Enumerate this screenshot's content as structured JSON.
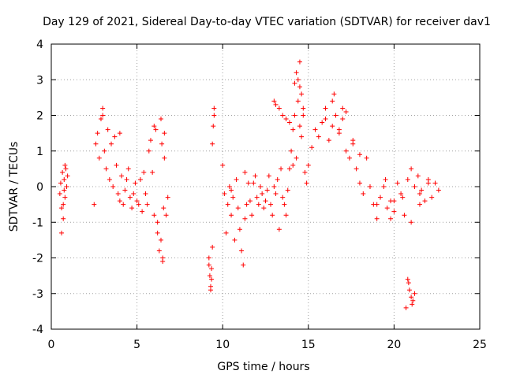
{
  "chart_data": {
    "type": "scatter",
    "title": "Day 129 of 2021, Sidereal Day-to-day VTEC variation (SDTVAR) for receiver dav1",
    "xlabel": "GPS time / hours",
    "ylabel": "SDTVAR / TECUs",
    "xlim": [
      0,
      25
    ],
    "ylim": [
      -4,
      4
    ],
    "xticks": [
      0,
      5,
      10,
      15,
      20,
      25
    ],
    "yticks": [
      -4,
      -3,
      -2,
      -1,
      0,
      1,
      2,
      3,
      4
    ],
    "grid": true,
    "marker": "+",
    "color": "#ff0000",
    "series": [
      {
        "name": "SDTVAR",
        "x": [
          0.5,
          0.55,
          0.6,
          0.65,
          0.7,
          0.75,
          0.8,
          0.85,
          0.9,
          0.95,
          0.6,
          0.7,
          0.8,
          0.75,
          2.5,
          2.6,
          2.7,
          2.8,
          2.9,
          3.0,
          3.1,
          3.2,
          3.3,
          3.4,
          3.5,
          3.6,
          3.7,
          3.8,
          3.9,
          4.0,
          4.1,
          4.2,
          4.3,
          4.4,
          4.5,
          4.6,
          4.7,
          4.8,
          4.9,
          5.0,
          5.1,
          5.2,
          5.3,
          5.4,
          5.5,
          5.6,
          5.7,
          5.8,
          5.9,
          6.0,
          6.1,
          6.2,
          6.3,
          6.4,
          6.5,
          6.6,
          6.7,
          6.8,
          6.2,
          6.4,
          6.5,
          6.6,
          6.45,
          6.55,
          9.2,
          9.25,
          9.3,
          9.35,
          9.4,
          9.45,
          9.5,
          9.2,
          9.3,
          9.4,
          9.5,
          9.35,
          10.0,
          10.1,
          10.2,
          10.3,
          10.4,
          10.5,
          10.6,
          10.7,
          10.8,
          10.9,
          11.0,
          11.1,
          11.2,
          11.3,
          11.4,
          11.5,
          11.6,
          11.7,
          11.8,
          11.9,
          12.0,
          12.1,
          12.2,
          12.3,
          12.4,
          12.5,
          12.6,
          12.7,
          12.8,
          12.9,
          13.0,
          13.1,
          13.2,
          13.3,
          13.4,
          13.5,
          13.6,
          13.7,
          13.8,
          13.9,
          14.0,
          14.1,
          14.2,
          14.3,
          14.4,
          14.5,
          14.6,
          14.7,
          14.8,
          14.9,
          13.0,
          13.1,
          13.3,
          13.5,
          13.7,
          13.9,
          14.1,
          14.2,
          14.3,
          14.4,
          14.5,
          14.6,
          14.7,
          15.0,
          15.2,
          15.4,
          15.6,
          15.8,
          16.0,
          16.2,
          16.4,
          16.6,
          16.8,
          17.0,
          17.2,
          17.4,
          17.6,
          17.8,
          18.0,
          18.2,
          18.4,
          18.6,
          18.8,
          19.0,
          19.2,
          19.4,
          19.6,
          19.8,
          20.0,
          20.2,
          20.4,
          20.6,
          20.8,
          21.0,
          21.2,
          21.4,
          21.6,
          21.8,
          22.0,
          22.2,
          22.4,
          22.6,
          16.0,
          16.4,
          16.8,
          17.2,
          17.6,
          18.0,
          19.0,
          19.5,
          20.0,
          20.5,
          21.0,
          21.5,
          22.0,
          20.7,
          20.8,
          20.9,
          21.0,
          21.1,
          21.2,
          20.85,
          21.05,
          3.0,
          4.0,
          6.0,
          10.5,
          11.3,
          14.5,
          16.5,
          17.0,
          19.8,
          21.5
        ],
        "y": [
          -0.2,
          0.1,
          -0.6,
          0.4,
          -0.9,
          0.2,
          -0.3,
          0.5,
          0.0,
          0.3,
          -1.3,
          -0.5,
          0.6,
          -0.1,
          -0.5,
          1.2,
          1.5,
          0.8,
          1.9,
          2.2,
          1.0,
          0.5,
          1.6,
          0.2,
          1.2,
          0.0,
          1.4,
          0.6,
          -0.2,
          -0.4,
          0.3,
          -0.5,
          -0.1,
          0.2,
          0.5,
          -0.3,
          -0.6,
          -0.2,
          0.1,
          -0.4,
          -0.5,
          0.2,
          -0.7,
          0.4,
          -0.2,
          -0.5,
          1.0,
          1.3,
          0.4,
          -0.8,
          1.6,
          -1.3,
          -1.8,
          1.9,
          -2.1,
          1.5,
          -0.8,
          -0.3,
          -1.0,
          -1.5,
          -2.0,
          0.8,
          1.2,
          -0.6,
          -2.0,
          -2.5,
          -2.8,
          -2.3,
          -1.7,
          1.7,
          2.2,
          -2.2,
          -2.9,
          1.2,
          2.0,
          -2.6,
          0.6,
          -0.2,
          -1.3,
          -0.5,
          0.0,
          -0.8,
          -0.3,
          -1.5,
          0.2,
          -0.6,
          -1.2,
          -1.8,
          -2.2,
          0.4,
          -0.5,
          0.1,
          -0.4,
          -0.8,
          0.1,
          0.3,
          -0.3,
          -0.5,
          0.0,
          -0.2,
          -0.6,
          -0.4,
          -0.1,
          0.3,
          -0.5,
          -0.8,
          0.0,
          -0.2,
          0.2,
          -1.2,
          0.5,
          -0.3,
          -0.5,
          -0.8,
          -0.1,
          0.5,
          1.0,
          0.6,
          2.0,
          0.8,
          2.4,
          1.7,
          1.4,
          2.2,
          0.4,
          0.1,
          2.4,
          2.3,
          2.2,
          2.0,
          1.9,
          1.8,
          1.6,
          2.9,
          3.2,
          3.0,
          3.5,
          2.6,
          2.0,
          0.6,
          1.1,
          1.6,
          1.4,
          1.8,
          2.2,
          1.3,
          2.4,
          2.0,
          1.6,
          2.2,
          1.0,
          0.8,
          1.3,
          0.5,
          0.1,
          -0.2,
          0.8,
          0.0,
          -0.5,
          -0.9,
          -0.3,
          0.0,
          -0.6,
          -0.9,
          -0.4,
          0.1,
          -0.2,
          -0.8,
          0.2,
          -1.0,
          0.0,
          0.3,
          -0.1,
          -0.4,
          0.2,
          -0.3,
          0.1,
          -0.1,
          1.9,
          1.7,
          1.5,
          2.1,
          1.2,
          0.9,
          -0.5,
          0.2,
          -0.7,
          -0.3,
          0.5,
          -0.5,
          0.1,
          -3.4,
          -2.6,
          -2.9,
          -3.1,
          -3.2,
          -3.0,
          -2.7,
          -3.3,
          2.0,
          1.5,
          1.7,
          -0.1,
          -0.9,
          2.8,
          2.6,
          1.9,
          -0.4,
          -0.2
        ]
      }
    ]
  }
}
